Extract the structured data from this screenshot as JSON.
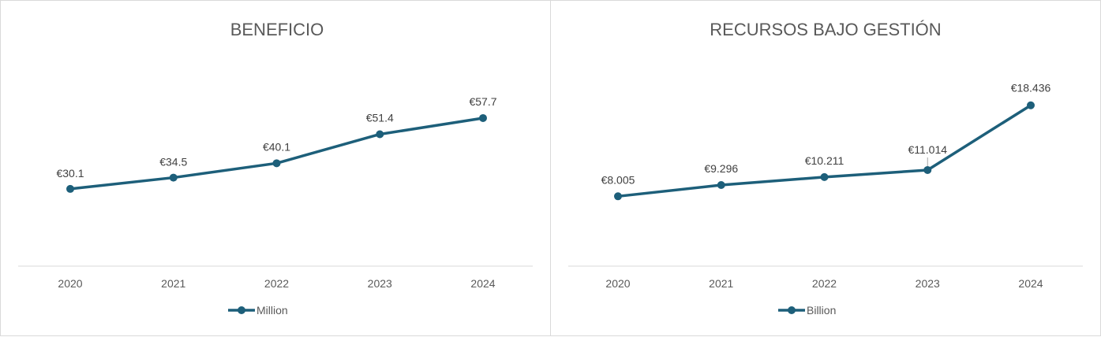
{
  "colors": {
    "series": "#1d5f7a",
    "axis": "#d9d9d9",
    "text": "#595959"
  },
  "chart_data": [
    {
      "type": "line",
      "title": "BENEFICIO",
      "categories": [
        "2020",
        "2021",
        "2022",
        "2023",
        "2024"
      ],
      "series": [
        {
          "name": "Million",
          "values": [
            30.1,
            34.5,
            40.1,
            51.4,
            57.7
          ],
          "labels": [
            "€30.1",
            "€34.5",
            "€40.1",
            "€51.4",
            "€57.7"
          ]
        }
      ],
      "ylim": [
        0,
        85
      ],
      "grid": false,
      "legend": "bottom"
    },
    {
      "type": "line",
      "title": "RECURSOS BAJO GESTIÓN",
      "categories": [
        "2020",
        "2021",
        "2022",
        "2023",
        "2024"
      ],
      "series": [
        {
          "name": "Billion",
          "values": [
            8.005,
            9.296,
            10.211,
            11.014,
            18.436
          ],
          "labels": [
            "€8.005",
            "€9.296",
            "€10.211",
            "€11.014",
            "€18.436"
          ]
        }
      ],
      "ylim": [
        0,
        25
      ],
      "grid": false,
      "legend": "bottom"
    }
  ]
}
